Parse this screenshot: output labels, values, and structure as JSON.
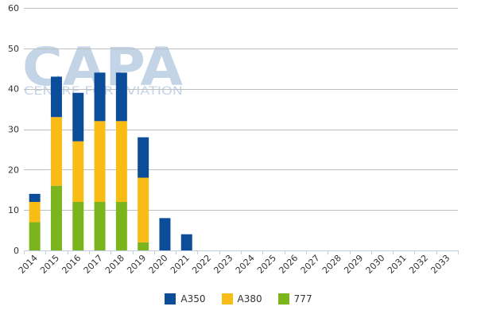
{
  "watermark": {
    "logo": "CAPA",
    "tagline": "CENTRE FOR AVIATION"
  },
  "chart_data": {
    "type": "bar",
    "stacked": true,
    "categories": [
      "2014",
      "2015",
      "2016",
      "2017",
      "2018",
      "2019",
      "2020",
      "2021",
      "2022",
      "2023",
      "2024",
      "2025",
      "2026",
      "2027",
      "2028",
      "2029",
      "2030",
      "2031",
      "2032",
      "2033"
    ],
    "series": [
      {
        "name": "777",
        "color": "#7ab51d",
        "values": [
          7,
          16,
          12,
          12,
          12,
          2,
          0,
          0,
          0,
          0,
          0,
          0,
          0,
          0,
          0,
          0,
          0,
          0,
          0,
          0
        ]
      },
      {
        "name": "A380",
        "color": "#f9bc15",
        "values": [
          5,
          17,
          15,
          20,
          20,
          16,
          0,
          0,
          0,
          0,
          0,
          0,
          0,
          0,
          0,
          0,
          0,
          0,
          0,
          0
        ]
      },
      {
        "name": "A350",
        "color": "#0c4d99",
        "values": [
          2,
          10,
          12,
          12,
          12,
          10,
          8,
          4,
          0,
          0,
          0,
          0,
          0,
          0,
          0,
          0,
          0,
          0,
          0,
          0
        ]
      }
    ],
    "legend_order": [
      "A350",
      "A380",
      "777"
    ],
    "yticks": [
      0,
      10,
      20,
      30,
      40,
      50,
      60
    ],
    "ylim": [
      0,
      60
    ],
    "grid": true,
    "legend_position": "bottom"
  }
}
